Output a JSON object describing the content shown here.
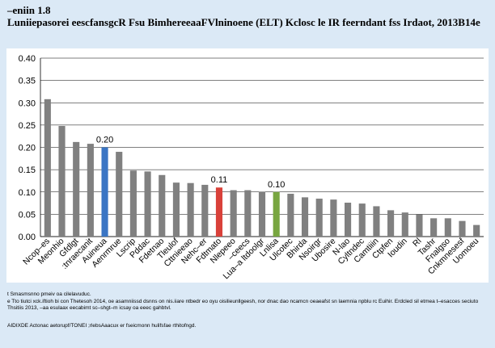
{
  "figure": {
    "number": "–eniin 1.8",
    "title": "Luniiepasorei eescfansgcR Fsu BimhereeaaFVlninoene (ELT) Kclosc le IR feerndant fss Irdaot, 2013B14e"
  },
  "chart_data": {
    "type": "bar",
    "categories": [
      "Ncop–es",
      "Meonhio",
      "Gfdlgt",
      ":tnraecanit",
      "Auineua",
      "Aenrmrue",
      "Lscrip",
      "Pddac",
      "Fdetnao",
      "Tleulof",
      "Cttnieeao",
      "Nehc–er",
      "Fdtmato",
      "Nlepeeo",
      "–ceecs",
      "Lua–a ltdoolgr",
      "Lnlisa",
      "Ulcotec",
      "Bhirda",
      "Nsoirgr",
      "Ubosire",
      "N-lao",
      "Cyltndec",
      "Camtiiin",
      "Ctpfen",
      "Ioudin",
      "Rl",
      "Tashr",
      "Fnalgso",
      "Cnkmnesesf",
      "Uomoeu"
    ],
    "values": [
      0.308,
      0.248,
      0.212,
      0.208,
      0.2,
      0.19,
      0.148,
      0.146,
      0.138,
      0.121,
      0.12,
      0.116,
      0.11,
      0.104,
      0.104,
      0.1,
      0.1,
      0.096,
      0.088,
      0.085,
      0.083,
      0.076,
      0.074,
      0.068,
      0.059,
      0.054,
      0.05,
      0.041,
      0.041,
      0.035,
      0.026
    ],
    "highlights": [
      {
        "category": "Auineua",
        "color": "#3a75c4",
        "label": "0.20"
      },
      {
        "category": "Fdtmato",
        "color": "#d9413a",
        "label": "0.11"
      },
      {
        "category": "Lnlisa",
        "color": "#78a640",
        "label": "0.10"
      }
    ],
    "default_color": "#808080",
    "yticks": [
      "0.00",
      "0.05",
      "0.10",
      "0.15",
      "0.20",
      "0.25",
      "0.30",
      "0.35",
      "0.40"
    ],
    "ylim": [
      0,
      0.4
    ],
    "grid": true,
    "xlabel": "",
    "ylabel": ""
  },
  "notes": {
    "line1": "t Smasmsnno pmeiv oa cilelavuduc.",
    "line2": "e Tto tiutci xck.iftioh bi con Thetesoh 2014, oe asamniissd dsnns on nis.iiare ntbedr eo oyu oisilieunllgeesh, nor dnac dao ncamcn oeaeafst sn laemnia npblu rc Euihir. Erdcled sil etmea t–esacces seciuto Thsitiis 2013, –aa esulaax eecabimt sc–shgt–m icsay oa eeec gahbtvl.",
    "source": "AIDIXDE Actonac aetorupf/TONEI ;rlebsAaacux er fseicmonn hulifsfae rthitofngd."
  }
}
